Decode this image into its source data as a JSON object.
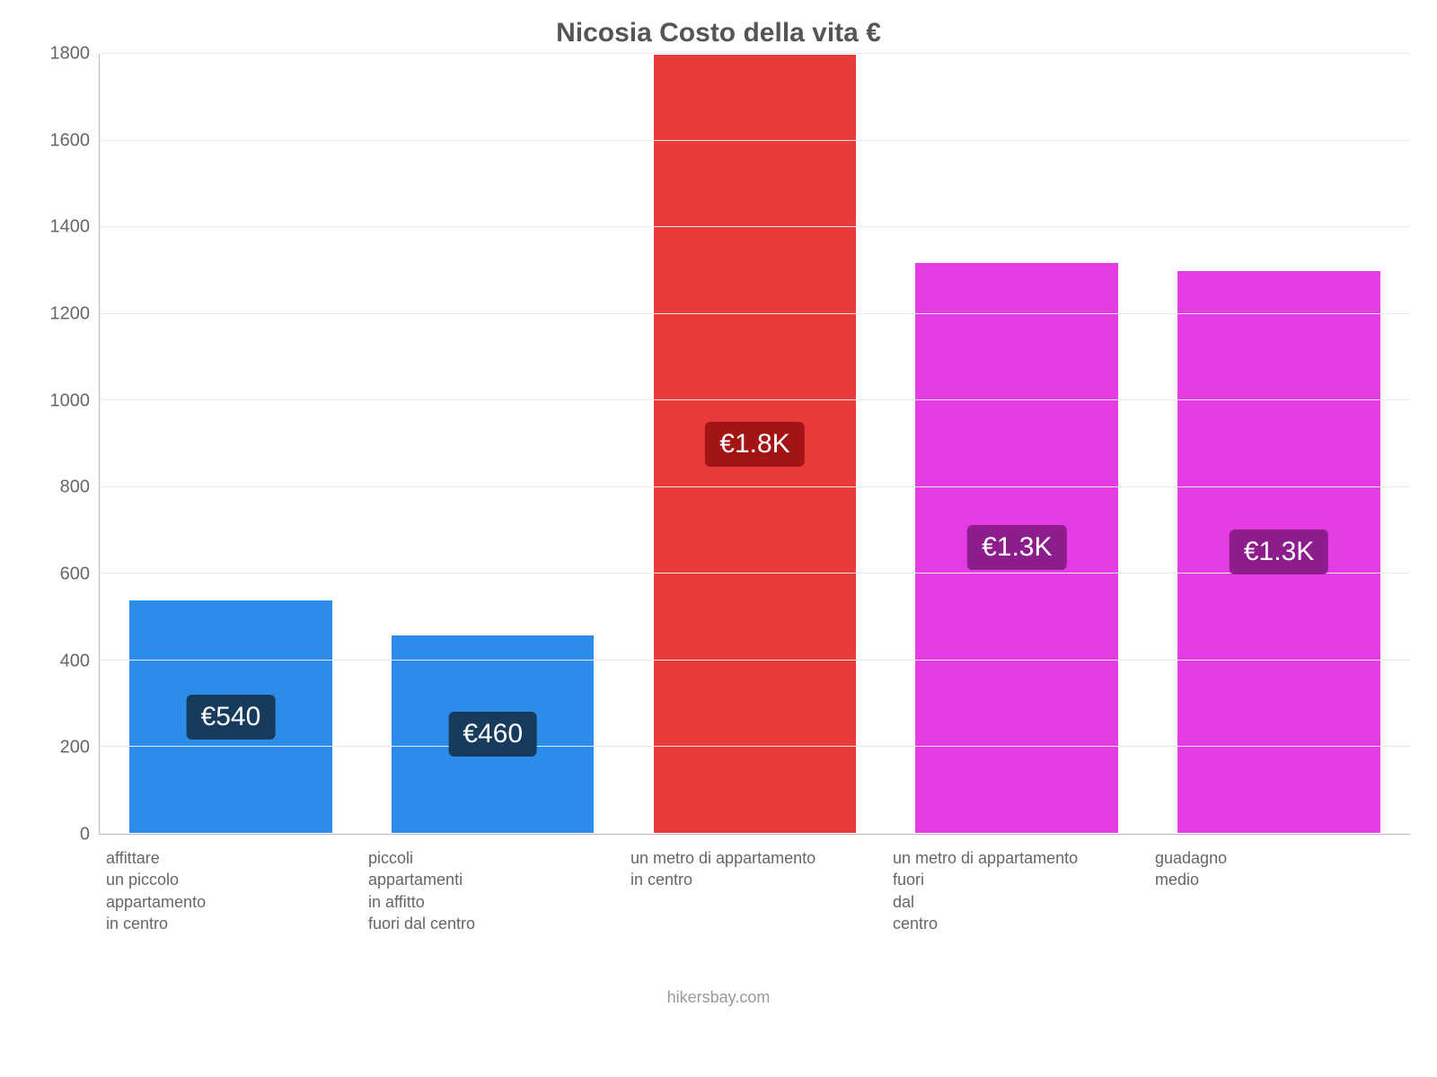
{
  "chart": {
    "type": "bar",
    "title": "Nicosia Costo della vita €",
    "title_color": "#555555",
    "title_fontsize": 30,
    "background_color": "#ffffff",
    "grid_color": "#e8e8e8",
    "axis_color": "#bbbbbb",
    "tick_color": "#666666",
    "tick_fontsize": 20,
    "xlabel_fontsize": 18,
    "bar_width_pct": 78,
    "label_fontsize": 30,
    "y": {
      "min": 0,
      "max": 1800,
      "step": 200,
      "ticks": [
        0,
        200,
        400,
        600,
        800,
        1000,
        1200,
        1400,
        1600,
        1800
      ]
    },
    "bars": [
      {
        "category": "affittare\nun piccolo\nappartamento\nin centro",
        "value": 540,
        "display_label": "€540",
        "bar_color": "#2b8cea",
        "label_bg": "#163b5c",
        "label_bottom_pct": 50
      },
      {
        "category": "piccoli\nappartamenti\nin affitto\nfuori dal centro",
        "value": 460,
        "display_label": "€460",
        "bar_color": "#2b8cea",
        "label_bg": "#163b5c",
        "label_bottom_pct": 50
      },
      {
        "category": "un metro di appartamento\nin centro",
        "value": 1800,
        "display_label": "€1.8K",
        "bar_color": "#ea3b3b",
        "label_bg": "#a31414",
        "label_bottom_pct": 50
      },
      {
        "category": "un metro di appartamento\nfuori\ndal\ncentro",
        "value": 1320,
        "display_label": "€1.3K",
        "bar_color": "#e43be4",
        "label_bg": "#8d1d8d",
        "label_bottom_pct": 50
      },
      {
        "category": "guadagno\nmedio",
        "value": 1300,
        "display_label": "€1.3K",
        "bar_color": "#e43be4",
        "label_bg": "#8d1d8d",
        "label_bottom_pct": 50
      }
    ],
    "source_text": "hikersbay.com",
    "source_color": "#999999"
  }
}
